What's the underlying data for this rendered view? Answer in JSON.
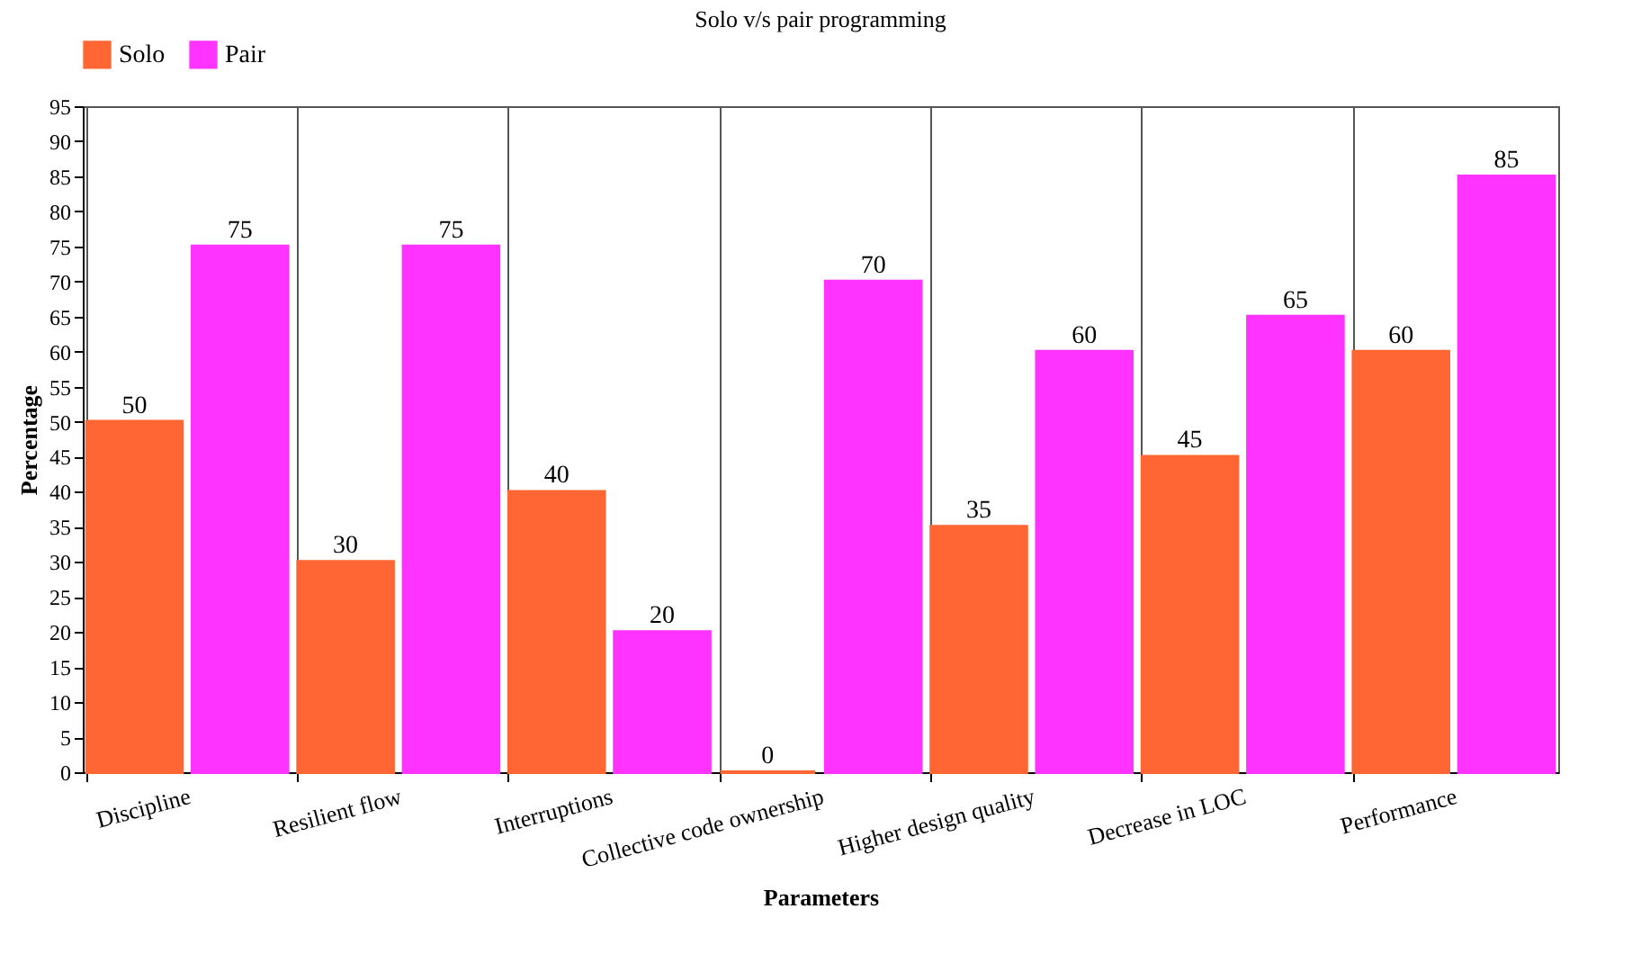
{
  "chart_data": {
    "type": "bar",
    "title": "Solo v/s pair programming",
    "xlabel": "Parameters",
    "ylabel": "Percentage",
    "categories": [
      "Discipline",
      "Resilient flow",
      "Interruptions",
      "Collective code ownership",
      "Higher design quality",
      "Decrease in LOC",
      "Performance"
    ],
    "series": [
      {
        "name": "Solo",
        "color": "#ff6633",
        "values": [
          50,
          30,
          40,
          0,
          35,
          45,
          60
        ]
      },
      {
        "name": "Pair",
        "color": "#ff33ff",
        "values": [
          75,
          75,
          20,
          70,
          60,
          65,
          85
        ]
      }
    ],
    "ylim": [
      0,
      95
    ],
    "yticks": [
      0,
      5,
      10,
      15,
      20,
      25,
      30,
      35,
      40,
      45,
      50,
      55,
      60,
      65,
      70,
      75,
      80,
      85,
      90,
      95
    ],
    "grid": "x",
    "legend": "top left",
    "data_labels": true
  }
}
